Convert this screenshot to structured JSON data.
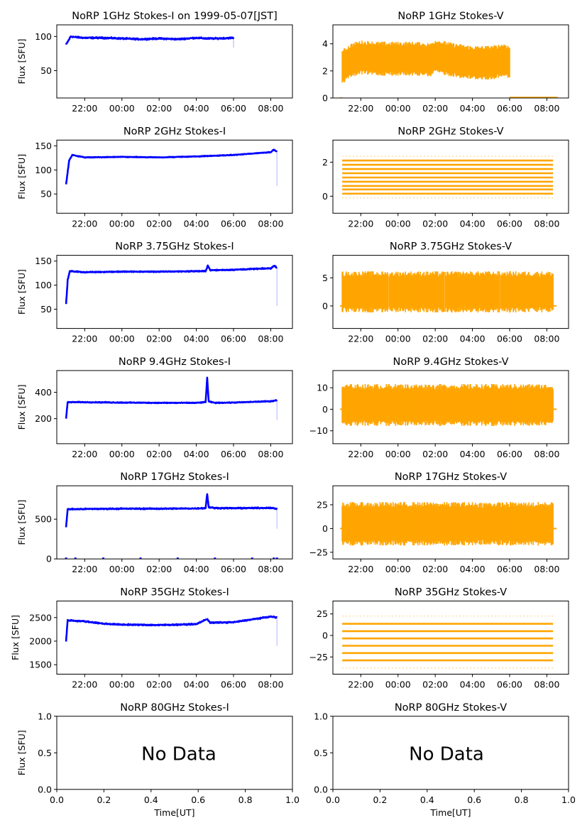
{
  "figure": {
    "x_time_ticks": [
      "22:00",
      "00:00",
      "02:00",
      "04:00",
      "06:00",
      "08:00"
    ],
    "nodata_ticks": [
      "0.0",
      "0.2",
      "0.4",
      "0.6",
      "0.8",
      "1.0"
    ],
    "ylabel": "Flux [SFU]",
    "xlabel": "Time[UT]",
    "no_data_text": "No Data",
    "colors": {
      "stokes_i": "#0000ff",
      "stokes_v": "#ffa500",
      "axes": "#000000"
    }
  },
  "chart_data": [
    {
      "type": "scatter",
      "title": "NoRP 1GHz Stokes-I on 1999-05-07[JST]",
      "ylabel": "Flux [SFU]",
      "xlabel": "",
      "xlim": [
        "20:30",
        "09:10"
      ],
      "ylim": [
        10,
        117
      ],
      "yticks": [
        50,
        100
      ],
      "yticklabels": [
        "50",
        "100"
      ],
      "series": [
        {
          "name": "Stokes-I",
          "x": [
            "21:00",
            "21:15",
            "21:30",
            "22:00",
            "23:00",
            "00:00",
            "01:00",
            "02:00",
            "03:00",
            "04:00",
            "04:35",
            "05:00",
            "06:00"
          ],
          "y": [
            88,
            100,
            99,
            98,
            98,
            97,
            96,
            97,
            96,
            98,
            97,
            97,
            98
          ],
          "spread": 3
        }
      ]
    },
    {
      "type": "scatter",
      "title": "NoRP 1GHz Stokes-V",
      "ylabel": "",
      "xlabel": "",
      "xlim": [
        "20:30",
        "09:10"
      ],
      "ylim": [
        0,
        5.4
      ],
      "yticks": [
        0,
        2,
        4
      ],
      "yticklabels": [
        "0",
        "2",
        "4"
      ],
      "series": [
        {
          "name": "Stokes-V",
          "x": [
            "21:00",
            "21:30",
            "22:00",
            "23:00",
            "00:00",
            "01:00",
            "01:45",
            "02:00",
            "03:00",
            "04:00",
            "05:00",
            "05:45",
            "06:00"
          ],
          "y": [
            2.3,
            2.8,
            3.0,
            2.9,
            2.9,
            2.9,
            2.8,
            3.1,
            2.8,
            2.6,
            2.6,
            2.8,
            2.6
          ],
          "spread": 1.1
        }
      ]
    },
    {
      "type": "scatter",
      "title": "NoRP 2GHz Stokes-I",
      "ylabel": "Flux [SFU]",
      "xlabel": "",
      "xlim": [
        "20:30",
        "09:10"
      ],
      "ylim": [
        10,
        162
      ],
      "yticks": [
        50,
        100,
        150
      ],
      "yticklabels": [
        "50",
        "100",
        "150"
      ],
      "series": [
        {
          "name": "Stokes-I",
          "x": [
            "21:00",
            "21:10",
            "21:20",
            "22:00",
            "00:00",
            "02:00",
            "03:00",
            "04:00",
            "06:00",
            "07:00",
            "08:00",
            "08:10",
            "08:20"
          ],
          "y": [
            70,
            120,
            131,
            126,
            127,
            126,
            127,
            128,
            131,
            134,
            137,
            142,
            138
          ],
          "spread": 2
        }
      ]
    },
    {
      "type": "scatter",
      "title": "NoRP 2GHz Stokes-V",
      "ylabel": "",
      "xlabel": "",
      "xlim": [
        "20:30",
        "09:10"
      ],
      "ylim": [
        -1,
        3.3
      ],
      "yticks": [
        0,
        2
      ],
      "yticklabels": [
        "0",
        "2"
      ],
      "series": [
        {
          "name": "Stokes-V",
          "x": [
            "21:00",
            "08:20"
          ],
          "y": [
            1.0,
            1.0
          ],
          "levels": [
            -0.1,
            0.15,
            0.4,
            0.6,
            0.85,
            1.1,
            1.35,
            1.6,
            1.85,
            2.1,
            2.35
          ]
        }
      ]
    },
    {
      "type": "scatter",
      "title": "NoRP 3.75GHz Stokes-I",
      "ylabel": "Flux [SFU]",
      "xlabel": "",
      "xlim": [
        "20:30",
        "09:10"
      ],
      "ylim": [
        10,
        162
      ],
      "yticks": [
        50,
        100,
        150
      ],
      "yticklabels": [
        "50",
        "100",
        "150"
      ],
      "series": [
        {
          "name": "Stokes-I",
          "x": [
            "21:00",
            "21:05",
            "21:12",
            "22:00",
            "00:00",
            "02:00",
            "04:00",
            "04:30",
            "04:37",
            "04:45",
            "06:00",
            "08:00",
            "08:10",
            "08:20"
          ],
          "y": [
            60,
            110,
            129,
            127,
            128,
            128,
            129,
            129,
            141,
            131,
            132,
            135,
            140,
            137
          ],
          "spread": 3
        }
      ]
    },
    {
      "type": "scatter",
      "title": "NoRP 3.75GHz Stokes-V",
      "ylabel": "",
      "xlabel": "",
      "xlim": [
        "20:30",
        "09:10"
      ],
      "ylim": [
        -4,
        9
      ],
      "yticks": [
        0,
        5
      ],
      "yticklabels": [
        "0",
        "5"
      ],
      "series": [
        {
          "name": "Stokes-V",
          "x": [
            "21:00",
            "08:20"
          ],
          "y": [
            2.5,
            2.5
          ],
          "spread": 3.2,
          "gaps": [
            "23:30",
            "02:30",
            "05:30"
          ]
        }
      ]
    },
    {
      "type": "scatter",
      "title": "NoRP 9.4GHz Stokes-I",
      "ylabel": "Flux [SFU]",
      "xlabel": "",
      "xlim": [
        "20:30",
        "09:10"
      ],
      "ylim": [
        10,
        565
      ],
      "yticks": [
        200,
        400
      ],
      "yticklabels": [
        "200",
        "400"
      ],
      "series": [
        {
          "name": "Stokes-I",
          "x": [
            "21:00",
            "21:05",
            "22:00",
            "00:00",
            "02:00",
            "04:00",
            "04:30",
            "04:35",
            "04:40",
            "05:00",
            "06:00",
            "08:00",
            "08:20"
          ],
          "y": [
            200,
            325,
            325,
            322,
            320,
            320,
            325,
            510,
            330,
            320,
            322,
            332,
            340
          ],
          "spread": 9
        }
      ]
    },
    {
      "type": "scatter",
      "title": "NoRP 9.4GHz Stokes-V",
      "ylabel": "",
      "xlabel": "",
      "xlim": [
        "20:30",
        "09:10"
      ],
      "ylim": [
        -16,
        18
      ],
      "yticks": [
        -10,
        0,
        10
      ],
      "yticklabels": [
        "−10",
        "0",
        "10"
      ],
      "series": [
        {
          "name": "Stokes-V",
          "x": [
            "21:00",
            "08:20"
          ],
          "y": [
            2,
            2
          ],
          "spread": 8.5
        }
      ]
    },
    {
      "type": "scatter",
      "title": "NoRP 17GHz Stokes-I",
      "ylabel": "Flux [SFU]",
      "xlabel": "",
      "xlim": [
        "20:30",
        "09:10"
      ],
      "ylim": [
        0,
        920
      ],
      "yticks": [
        0,
        500
      ],
      "yticklabels": [
        "0",
        "500"
      ],
      "series": [
        {
          "name": "Stokes-I",
          "x": [
            "21:00",
            "21:05",
            "22:00",
            "00:00",
            "02:00",
            "04:00",
            "04:30",
            "04:35",
            "04:40",
            "05:00",
            "06:00",
            "08:00",
            "08:20"
          ],
          "y": [
            400,
            625,
            628,
            632,
            632,
            635,
            640,
            820,
            650,
            640,
            638,
            642,
            630
          ],
          "spread": 20
        }
      ]
    },
    {
      "type": "scatter",
      "title": "NoRP 17GHz Stokes-V",
      "ylabel": "",
      "xlabel": "",
      "xlim": [
        "20:30",
        "09:10"
      ],
      "ylim": [
        -32,
        45
      ],
      "yticks": [
        -25,
        0,
        25
      ],
      "yticklabels": [
        "−25",
        "0",
        "25"
      ],
      "series": [
        {
          "name": "Stokes-V",
          "x": [
            "21:00",
            "08:20"
          ],
          "y": [
            5,
            5
          ],
          "spread": 20
        }
      ]
    },
    {
      "type": "scatter",
      "title": "NoRP 35GHz Stokes-I",
      "ylabel": "Flux [SFU]",
      "xlabel": "",
      "xlim": [
        "20:30",
        "09:10"
      ],
      "ylim": [
        1300,
        2850
      ],
      "yticks": [
        1500,
        2000,
        2500
      ],
      "yticklabels": [
        "1500",
        "2000",
        "2500"
      ],
      "series": [
        {
          "name": "Stokes-I",
          "x": [
            "21:00",
            "21:05",
            "22:00",
            "23:00",
            "00:00",
            "02:00",
            "04:00",
            "04:35",
            "04:45",
            "06:00",
            "07:00",
            "08:00",
            "08:20"
          ],
          "y": [
            2000,
            2440,
            2420,
            2370,
            2350,
            2340,
            2360,
            2470,
            2390,
            2400,
            2460,
            2520,
            2500
          ],
          "spread": 35
        }
      ]
    },
    {
      "type": "scatter",
      "title": "NoRP 35GHz Stokes-V",
      "ylabel": "",
      "xlabel": "",
      "xlim": [
        "20:30",
        "09:10"
      ],
      "ylim": [
        -45,
        40
      ],
      "yticks": [
        -25,
        0,
        25
      ],
      "yticklabels": [
        "−25",
        "0",
        "25"
      ],
      "series": [
        {
          "name": "Stokes-V",
          "x": [
            "21:00",
            "08:20"
          ],
          "y": [
            0,
            0
          ],
          "levels": [
            -38,
            -29,
            -20.5,
            -12,
            -3.5,
            5,
            13.5,
            22.5
          ]
        }
      ]
    },
    {
      "type": "scatter",
      "title": "NoRP 80GHz Stokes-I",
      "ylabel": "Flux [SFU]",
      "xlabel": "Time[UT]",
      "xlim": [
        0,
        1
      ],
      "ylim": [
        0,
        1
      ],
      "yticks": [
        0,
        0.5,
        1
      ],
      "yticklabels": [
        "0.0",
        "0.5",
        "1.0"
      ],
      "series": [],
      "annotation": "No Data"
    },
    {
      "type": "scatter",
      "title": "NoRP 80GHz Stokes-V",
      "ylabel": "",
      "xlabel": "Time[UT]",
      "xlim": [
        0,
        1
      ],
      "ylim": [
        0,
        1
      ],
      "yticks": [
        0,
        0.5,
        1
      ],
      "yticklabels": [
        "0.0",
        "0.5",
        "1.0"
      ],
      "series": [],
      "annotation": "No Data"
    }
  ]
}
